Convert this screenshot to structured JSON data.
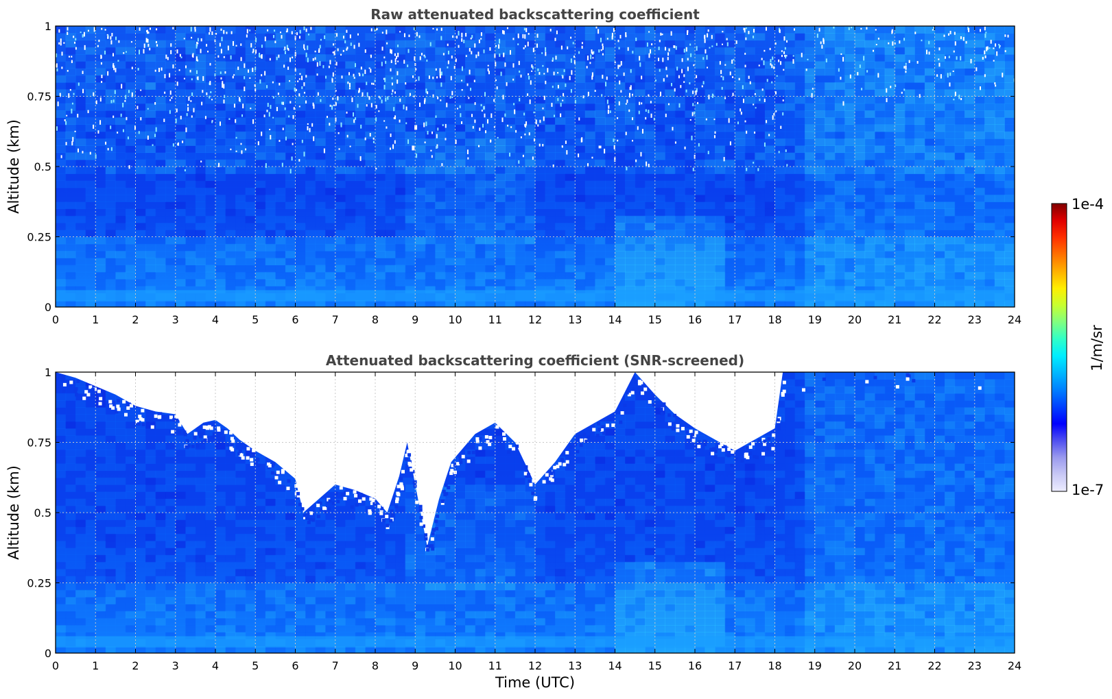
{
  "chart_data": [
    {
      "type": "heatmap",
      "title": "Raw attenuated backscattering coefficient",
      "xlabel": "",
      "ylabel": "Altitude (km)",
      "xlim": [
        0,
        24
      ],
      "ylim": [
        0,
        1
      ],
      "x_ticks": [
        "0",
        "1",
        "2",
        "3",
        "4",
        "5",
        "6",
        "7",
        "8",
        "9",
        "10",
        "11",
        "12",
        "13",
        "14",
        "15",
        "16",
        "17",
        "18",
        "19",
        "20",
        "21",
        "22",
        "23",
        "24"
      ],
      "y_ticks": [
        "0",
        "0.25",
        "0.5",
        "0.75",
        "1"
      ],
      "grid": true,
      "screened": false,
      "features": {
        "noise_at_high_altitude": true,
        "enhanced_layer_hours": [
          14,
          16.5
        ],
        "enhanced_layer_top_km": 0.32
      }
    },
    {
      "type": "heatmap",
      "title": "Attenuated backscattering coefficient (SNR-screened)",
      "xlabel": "Time (UTC)",
      "ylabel": "Altitude (km)",
      "xlim": [
        0,
        24
      ],
      "ylim": [
        0,
        1
      ],
      "x_ticks": [
        "0",
        "1",
        "2",
        "3",
        "4",
        "5",
        "6",
        "7",
        "8",
        "9",
        "10",
        "11",
        "12",
        "13",
        "14",
        "15",
        "16",
        "17",
        "18",
        "19",
        "20",
        "21",
        "22",
        "23",
        "24"
      ],
      "y_ticks": [
        "0",
        "0.25",
        "0.5",
        "0.75",
        "1"
      ],
      "grid": true,
      "screened": true,
      "screen_boundary_km": [
        [
          0,
          1.0
        ],
        [
          0.5,
          0.98
        ],
        [
          1,
          0.95
        ],
        [
          1.5,
          0.92
        ],
        [
          2,
          0.88
        ],
        [
          2.5,
          0.86
        ],
        [
          3,
          0.85
        ],
        [
          3.3,
          0.78
        ],
        [
          3.7,
          0.82
        ],
        [
          4,
          0.83
        ],
        [
          4.3,
          0.8
        ],
        [
          4.6,
          0.76
        ],
        [
          5,
          0.72
        ],
        [
          5.5,
          0.68
        ],
        [
          6,
          0.62
        ],
        [
          6.2,
          0.5
        ],
        [
          6.6,
          0.55
        ],
        [
          7,
          0.6
        ],
        [
          7.5,
          0.58
        ],
        [
          8,
          0.55
        ],
        [
          8.3,
          0.5
        ],
        [
          8.6,
          0.63
        ],
        [
          8.8,
          0.75
        ],
        [
          9,
          0.6
        ],
        [
          9.3,
          0.38
        ],
        [
          9.6,
          0.55
        ],
        [
          9.9,
          0.68
        ],
        [
          10.5,
          0.78
        ],
        [
          11,
          0.82
        ],
        [
          11.5,
          0.75
        ],
        [
          12,
          0.6
        ],
        [
          12.5,
          0.68
        ],
        [
          13,
          0.78
        ],
        [
          13.5,
          0.82
        ],
        [
          14,
          0.86
        ],
        [
          14.5,
          1.0
        ],
        [
          15,
          0.92
        ],
        [
          15.5,
          0.85
        ],
        [
          16,
          0.8
        ],
        [
          16.5,
          0.76
        ],
        [
          17,
          0.72
        ],
        [
          17.5,
          0.76
        ],
        [
          18,
          0.8
        ],
        [
          18.2,
          1.0
        ],
        [
          24,
          1.0
        ]
      ],
      "features": {
        "enhanced_layer_hours": [
          14,
          16.5
        ],
        "enhanced_layer_top_km": 0.32
      }
    }
  ],
  "colorbar": {
    "label": "1/m/sr",
    "max_label": "1e-4",
    "min_label": "1e-7",
    "range": [
      1e-07,
      0.0001
    ],
    "scale": "log",
    "colormap": "jet",
    "colors": [
      "#ececff",
      "#c8c8f5",
      "#9a9aee",
      "#5050f0",
      "#0000ff",
      "#0040ff",
      "#0080ff",
      "#00b8ff",
      "#00eeff",
      "#30ffc8",
      "#80ff80",
      "#c8ff30",
      "#ffee00",
      "#ffb000",
      "#ff7000",
      "#ff3000",
      "#e00000",
      "#800000"
    ]
  },
  "colors": {
    "background_low": "#0a2ee6",
    "mid_blue": "#0a6aff",
    "light_blue": "#1aa6ff",
    "cyan": "#28d0ff",
    "title": "#444444"
  }
}
